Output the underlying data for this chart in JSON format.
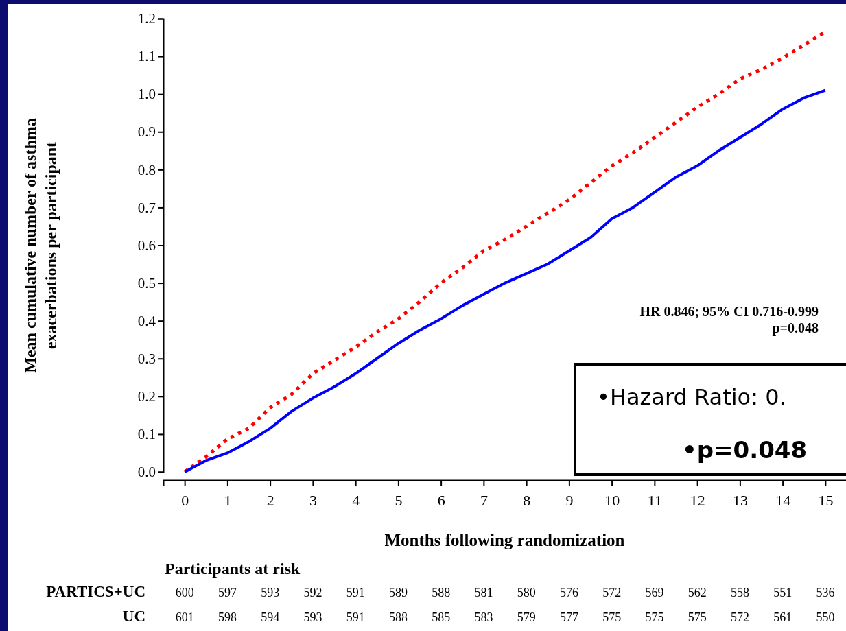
{
  "chart_data": {
    "type": "line",
    "xlabel": "Months following randomization",
    "ylabel": "Mean cumulative number of asthma\nexacerbations per participant",
    "x": [
      0,
      0.5,
      1,
      1.5,
      2,
      2.5,
      3,
      3.5,
      4,
      4.5,
      5,
      5.5,
      6,
      6.5,
      7,
      7.5,
      8,
      8.5,
      9,
      9.5,
      10,
      10.5,
      11,
      11.5,
      12,
      12.5,
      13,
      13.5,
      14,
      14.5,
      15
    ],
    "series": [
      {
        "color": "#ff0000",
        "line_style": "dotted",
        "values": [
          0,
          0.04,
          0.087,
          0.115,
          0.17,
          0.205,
          0.26,
          0.295,
          0.33,
          0.37,
          0.405,
          0.45,
          0.5,
          0.54,
          0.585,
          0.615,
          0.65,
          0.685,
          0.72,
          0.765,
          0.81,
          0.845,
          0.885,
          0.925,
          0.965,
          1.0,
          1.04,
          1.065,
          1.095,
          1.13,
          1.165
        ]
      },
      {
        "color": "#0000ff",
        "line_style": "solid",
        "values": [
          0,
          0.03,
          0.05,
          0.08,
          0.115,
          0.16,
          0.195,
          0.225,
          0.26,
          0.3,
          0.34,
          0.375,
          0.405,
          0.44,
          0.47,
          0.5,
          0.525,
          0.55,
          0.585,
          0.62,
          0.67,
          0.7,
          0.74,
          0.78,
          0.81,
          0.85,
          0.885,
          0.92,
          0.96,
          0.99,
          1.01
        ]
      }
    ],
    "xlim": [
      -0.5,
      15.5
    ],
    "xticks": [
      0,
      1,
      2,
      3,
      4,
      5,
      6,
      7,
      8,
      9,
      10,
      11,
      12,
      13,
      14,
      15
    ],
    "ylim": [
      0,
      1.2
    ],
    "yticks": [
      {
        "value": 0,
        "label": "0.0"
      },
      {
        "value": 0.1,
        "label": "0.1"
      },
      {
        "value": 0.2,
        "label": "0.2"
      },
      {
        "value": 0.3,
        "label": "0.3"
      },
      {
        "value": 0.4,
        "label": "0.4"
      },
      {
        "value": 0.5,
        "label": "0.5"
      },
      {
        "value": 0.6,
        "label": "0.6"
      },
      {
        "value": 0.7,
        "label": "0.7"
      },
      {
        "value": 0.8,
        "label": "0.8"
      },
      {
        "value": 0.9,
        "label": "0.9"
      },
      {
        "value": 1.0,
        "label": "1.0"
      },
      {
        "value": 1.1,
        "label": "1.1"
      },
      {
        "value": 1.2,
        "label": "1.2"
      }
    ],
    "grid": false,
    "marker": "none",
    "annotations": [
      "HR 0.846; 95% CI 0.716-0.999",
      "p=0.048",
      "•Hazard Ratio: 0.",
      "•p=0.048",
      "Participants at risk",
      "PARTICS+UC",
      "600 597 593 592 591 589 588 581 580 576 572 569 562 558 551 536",
      "UC",
      "601 598 594 593 591 588 585 583 579 577 575 575 575 572 561 550"
    ]
  }
}
